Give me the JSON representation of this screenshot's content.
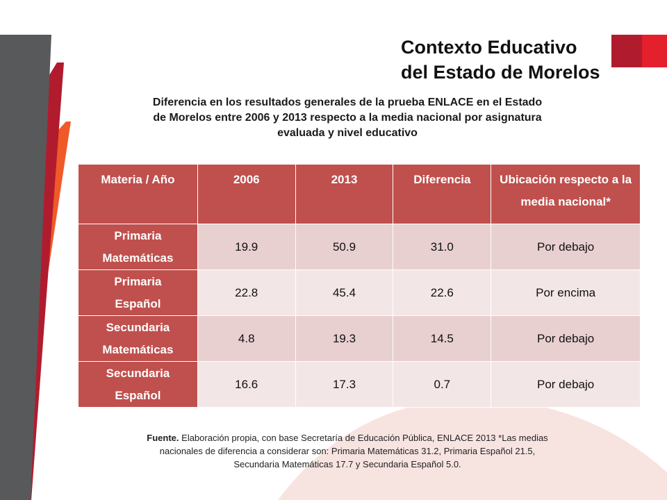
{
  "slide": {
    "title_lines": [
      "Contexto Educativo",
      "del Estado de Morelos"
    ],
    "subtitle_lines": [
      "Diferencia en los resultados generales de la prueba ENLACE en el Estado",
      "de Morelos entre 2006 y 2013 respecto a la media nacional por asignatura",
      "evaluada y nivel educativo"
    ],
    "colors": {
      "accent_red": "#c0504d",
      "brand_crimson": "#b01c2e",
      "brand_orange": "#ef5a28",
      "stripe_gray": "#58595b"
    }
  },
  "table": {
    "headers": [
      "Materia / Año",
      "2006",
      "2013",
      "Diferencia",
      "Ubicación respecto a la media nacional*"
    ],
    "rows": [
      {
        "subject": [
          "Primaria",
          "Matemáticas"
        ],
        "y2006": "19.9",
        "y2013": "50.9",
        "diff": "31.0",
        "position": "Por debajo"
      },
      {
        "subject": [
          "Primaria",
          "Español"
        ],
        "y2006": "22.8",
        "y2013": "45.4",
        "diff": "22.6",
        "position": "Por encima"
      },
      {
        "subject": [
          "Secundaria",
          "Matemáticas"
        ],
        "y2006": "4.8",
        "y2013": "19.3",
        "diff": "14.5",
        "position": "Por debajo"
      },
      {
        "subject": [
          "Secundaria",
          "Español"
        ],
        "y2006": "16.6",
        "y2013": "17.3",
        "diff": "0.7",
        "position": "Por debajo"
      }
    ]
  },
  "source": {
    "label": "Fuente.",
    "line1": " Elaboración propia, con base Secretaría de Educación Pública, ENLACE 2013 *Las medias",
    "line2": "nacionales de diferencia  a considerar son: Primaria  Matemáticas 31.2, Primaria Español 21.5,",
    "line3": "Secundaria Matemáticas 17.7 y Secundaria Español 5.0."
  }
}
